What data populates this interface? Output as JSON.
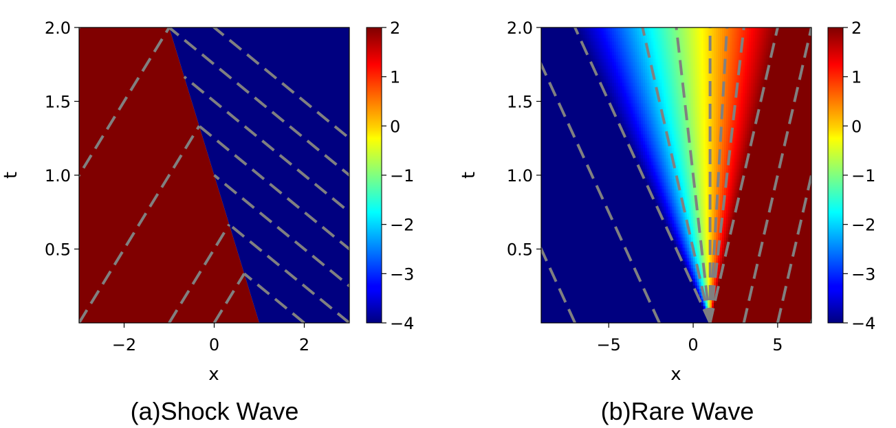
{
  "chart_data": [
    {
      "type": "heatmap",
      "caption": "(a)Shock Wave",
      "xlabel": "x",
      "ylabel": "t",
      "xlim": [
        -3,
        3
      ],
      "ylim": [
        0,
        2
      ],
      "xticks": [
        -2,
        0,
        2
      ],
      "xtick_labels": [
        "−2",
        "0",
        "2"
      ],
      "yticks": [
        0.5,
        1.0,
        1.5,
        2.0
      ],
      "ytick_labels": [
        "0.5",
        "1.0",
        "1.5",
        "2.0"
      ],
      "colormap": "jet",
      "colorbar": {
        "range": [
          -4,
          2
        ],
        "ticks": [
          2,
          1,
          0,
          -1,
          -2,
          -3,
          -4
        ],
        "tick_labels": [
          "2",
          "1",
          "0",
          "−1",
          "−2",
          "−3",
          "−4"
        ]
      },
      "left_value": 2,
      "right_value": -4,
      "shock_line": {
        "x_at_t0": 1,
        "speed": -1
      },
      "characteristics_left": {
        "slope_dx_dt": 2,
        "x0": [
          -7,
          -5,
          -3,
          -1,
          0,
          1
        ]
      },
      "characteristics_right": {
        "slope_dx_dt": -4,
        "x0": [
          1,
          2,
          3,
          4,
          5,
          6,
          7,
          8
        ]
      },
      "line_color": "#808080"
    },
    {
      "type": "heatmap",
      "caption": "(b)Rare Wave",
      "xlabel": "x",
      "ylabel": "t",
      "xlim": [
        -9,
        7
      ],
      "ylim": [
        0,
        2
      ],
      "xticks": [
        -5,
        0,
        5
      ],
      "xtick_labels": [
        "−5",
        "0",
        "5"
      ],
      "yticks": [
        0.5,
        1.0,
        1.5,
        2.0
      ],
      "ytick_labels": [
        "0.5",
        "1.0",
        "1.5",
        "2.0"
      ],
      "colormap": "jet",
      "colorbar": {
        "range": [
          -4,
          2
        ],
        "ticks": [
          2,
          1,
          0,
          -1,
          -2,
          -3,
          -4
        ],
        "tick_labels": [
          "2",
          "1",
          "0",
          "−1",
          "−2",
          "−3",
          "−4"
        ]
      },
      "origin_x": 1,
      "left_value": -4,
      "right_value": 2,
      "characteristics_left": {
        "slope_dx_dt": -4,
        "x0": [
          -7,
          -2,
          1
        ]
      },
      "characteristics_fan": {
        "origin_x": 1,
        "speeds": [
          -2,
          -1,
          0,
          0.5,
          1
        ]
      },
      "characteristics_right": {
        "slope_dx_dt": 2,
        "x0": [
          1,
          3,
          5,
          7
        ]
      },
      "line_color": "#808080"
    }
  ]
}
